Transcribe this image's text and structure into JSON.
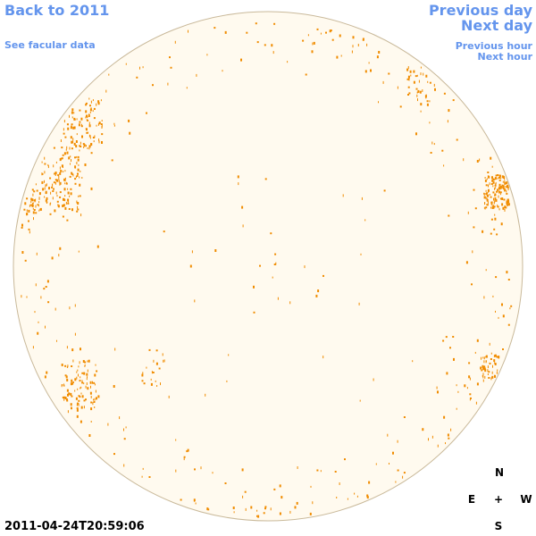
{
  "header": {
    "back": "Back to 2011",
    "facular": "See facular data",
    "prev_day": "Previous day",
    "next_day": "Next day",
    "prev_hour": "Previous hour",
    "next_hour": "Next hour"
  },
  "timestamp": "2011-04-24T20:59:06",
  "compass": {
    "north": "N",
    "east": "E",
    "center": "+",
    "west": "W",
    "south": "S"
  }
}
